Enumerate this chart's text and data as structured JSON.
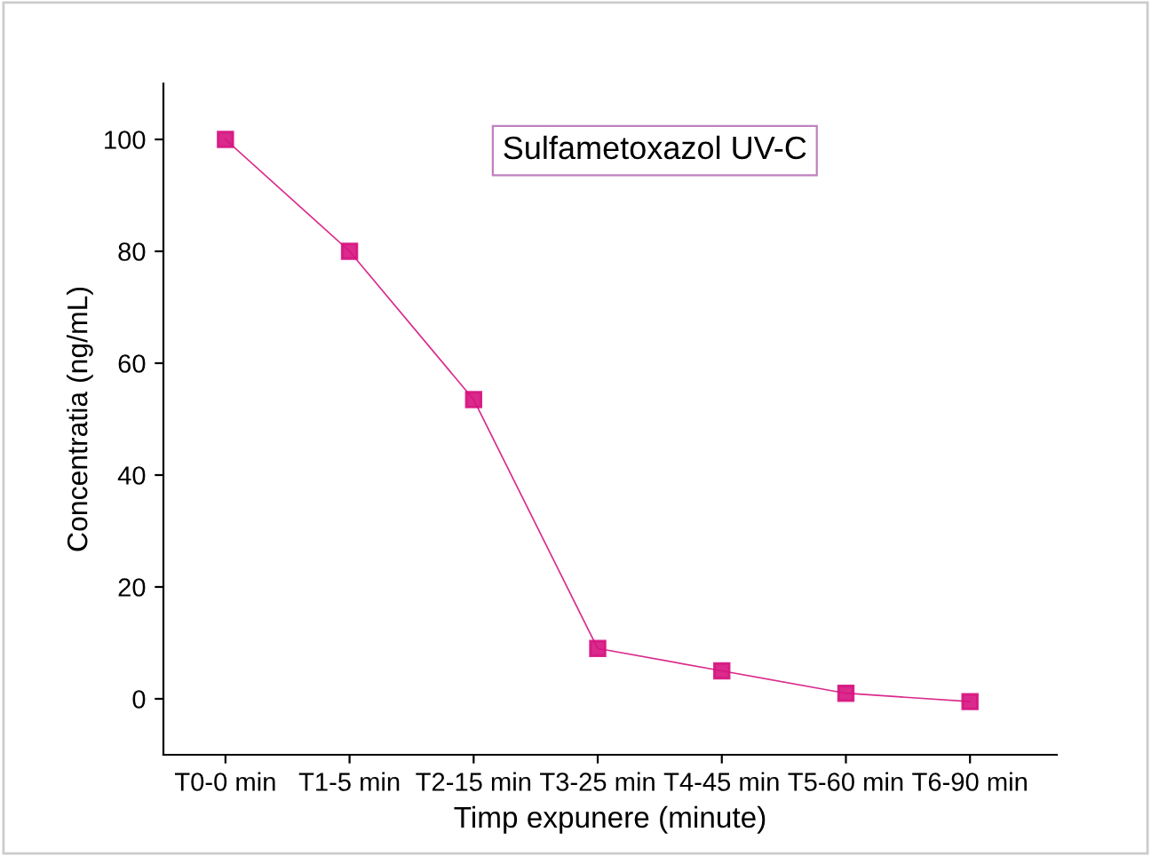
{
  "chart_data": {
    "type": "line",
    "title": "Sulfametoxazol UV-C",
    "xlabel": "Timp expunere (minute)",
    "ylabel": "Concentratia (ng/mL)",
    "categories": [
      "T0-0 min",
      "T1-5 min",
      "T2-15 min",
      "T3-25 min",
      "T4-45 min",
      "T5-60 min",
      "T6-90 min"
    ],
    "series": [
      {
        "color": "#d6137f",
        "values": [
          100,
          80,
          53.5,
          9,
          5,
          1,
          -0.5
        ]
      }
    ],
    "ylim": [
      -10,
      110
    ],
    "yticks": [
      0,
      20,
      40,
      60,
      80,
      100
    ],
    "grid": false,
    "legend": false,
    "marker": "square",
    "line_style": "solid"
  }
}
